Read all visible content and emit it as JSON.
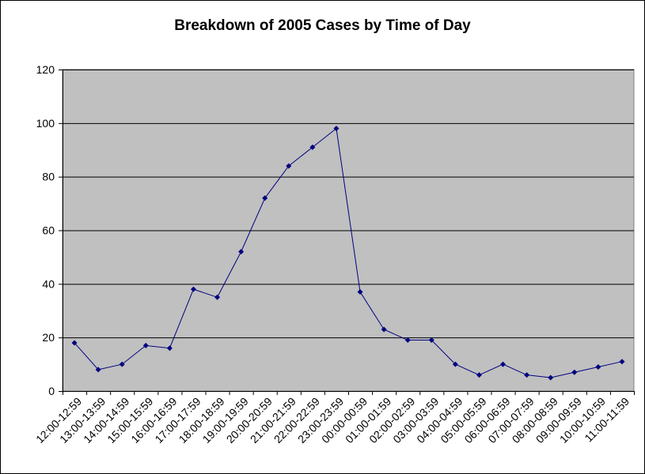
{
  "chart_data": {
    "type": "line",
    "title": "Breakdown of 2005 Cases by Time of Day",
    "xlabel": "",
    "ylabel": "",
    "ylim": [
      0,
      120
    ],
    "yticks": [
      0,
      20,
      40,
      60,
      80,
      100,
      120
    ],
    "grid": true,
    "legend": "none",
    "categories": [
      "12:00-12:59",
      "13:00-13:59",
      "14:00-14:59",
      "15:00-15:59",
      "16:00-16:59",
      "17:00-17:59",
      "18:00-18:59",
      "19:00-19:59",
      "20:00-20:59",
      "21:00-21:59",
      "22:00-22:59",
      "23:00-23:59",
      "00:00-00:59",
      "01:00-01:59",
      "02:00-02:59",
      "03:00-03:59",
      "04:00-04:59",
      "05:00-05:59",
      "06:00-06:59",
      "07:00-07:59",
      "08:00-08:59",
      "09:00-09:59",
      "10:00-10:59",
      "11:00-11:59"
    ],
    "series": [
      {
        "values": [
          18,
          8,
          10,
          17,
          16,
          38,
          35,
          52,
          72,
          84,
          91,
          98,
          37,
          23,
          19,
          19,
          10,
          6,
          10,
          6,
          5,
          7,
          9,
          11
        ]
      }
    ],
    "colors": {
      "plot_background": "#c0c0c0",
      "line": "#000080",
      "gridline": "#000000"
    }
  }
}
